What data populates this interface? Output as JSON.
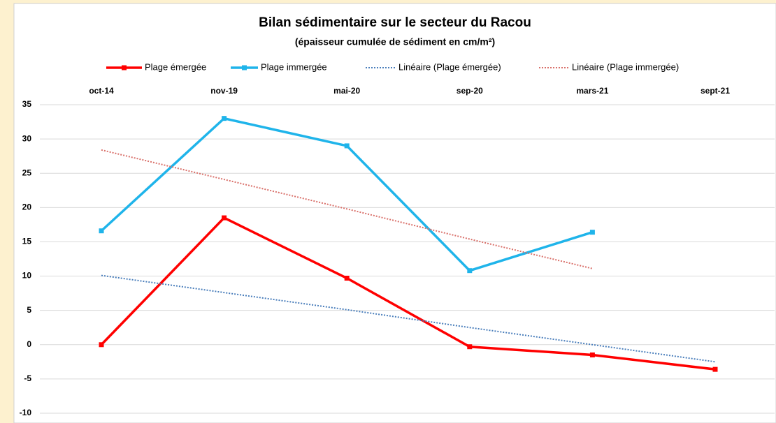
{
  "chart_data": {
    "type": "line",
    "title": "Bilan sédimentaire sur le secteur du Racou",
    "subtitle": "(épaisseur cumulée de sédiment en cm/m²)",
    "categories": [
      "oct-14",
      "nov-19",
      "mai-20",
      "sep-20",
      "mars-21",
      "sept-21"
    ],
    "series": [
      {
        "name": "Plage émergée",
        "color": "#ff0000",
        "style": "solid",
        "marker": "square",
        "values": [
          0,
          18.5,
          9.7,
          -0.3,
          -1.5,
          -3.6
        ]
      },
      {
        "name": "Plage immergée",
        "color": "#1fb4ea",
        "style": "solid",
        "marker": "square",
        "values": [
          16.6,
          33,
          29,
          10.8,
          16.4,
          null
        ]
      },
      {
        "name": "Linéaire (Plage émergée)",
        "color": "#4a7ebb",
        "style": "dotted",
        "values": [
          10.1,
          7.6,
          5.1,
          2.5,
          0,
          -2.5
        ]
      },
      {
        "name": "Linéaire (Plage immergée)",
        "color": "#d9706a",
        "style": "dotted",
        "values": [
          28.4,
          24.1,
          19.8,
          15.4,
          11.1,
          null
        ]
      }
    ],
    "ylim": [
      -10,
      35
    ],
    "yticks": [
      -10,
      -5,
      0,
      5,
      10,
      15,
      20,
      25,
      30,
      35
    ],
    "grid": true,
    "legend": "top"
  }
}
